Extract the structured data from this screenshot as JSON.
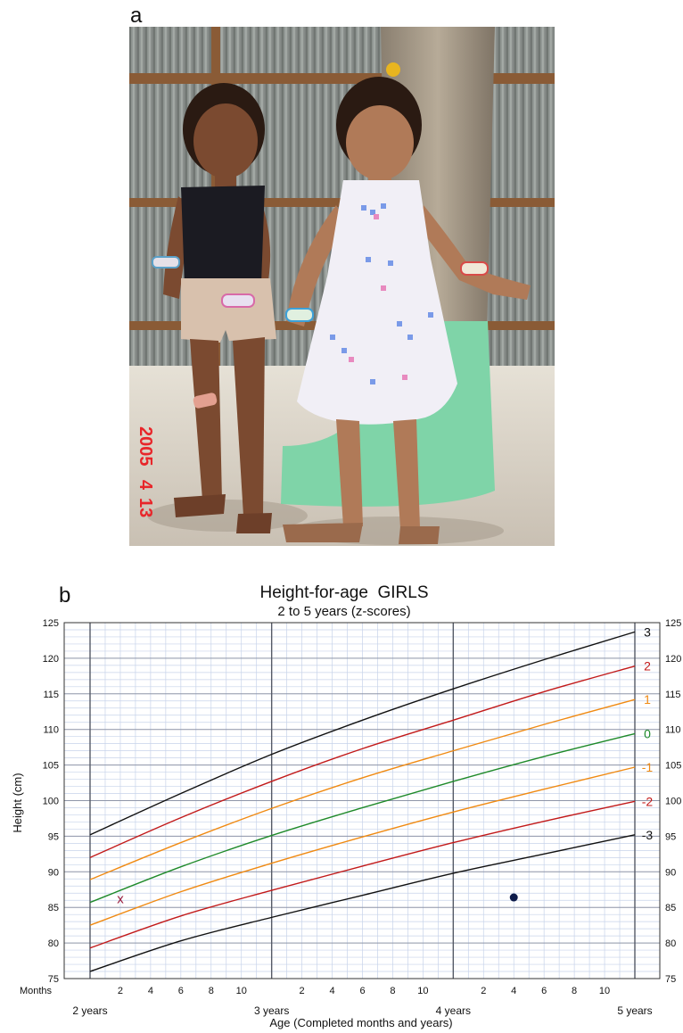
{
  "panels": {
    "a": "a",
    "b": "b"
  },
  "photo": {
    "date_stamp": [
      "2005",
      "4",
      "13"
    ],
    "colors": {
      "date_stamp": "#e8262a",
      "wall": "#8a8f8c",
      "tree_base": "#7fd4a8",
      "ground": "#d9d2c7"
    }
  },
  "chart_data": {
    "type": "line",
    "title": "Height-for-age  GIRLS",
    "subtitle": "2 to 5 years (z-scores)",
    "xlabel": "Age (Completed months and years)",
    "ylabel": "Height (cm)",
    "x_row_label": "Months",
    "xlim": [
      24,
      60
    ],
    "ylim": [
      75,
      125
    ],
    "y_ticks": [
      75,
      80,
      85,
      90,
      95,
      100,
      105,
      110,
      115,
      120,
      125
    ],
    "y_ticks_right": [
      "75",
      "80",
      "85",
      "90",
      "95",
      "100",
      "105",
      "110",
      "115",
      "120",
      "125"
    ],
    "month_ticks": [
      {
        "x": 26,
        "label": "2"
      },
      {
        "x": 28,
        "label": "4"
      },
      {
        "x": 30,
        "label": "6"
      },
      {
        "x": 32,
        "label": "8"
      },
      {
        "x": 34,
        "label": "10"
      },
      {
        "x": 38,
        "label": "2"
      },
      {
        "x": 40,
        "label": "4"
      },
      {
        "x": 42,
        "label": "6"
      },
      {
        "x": 44,
        "label": "8"
      },
      {
        "x": 46,
        "label": "10"
      },
      {
        "x": 50,
        "label": "2"
      },
      {
        "x": 52,
        "label": "4"
      },
      {
        "x": 54,
        "label": "6"
      },
      {
        "x": 56,
        "label": "8"
      },
      {
        "x": 58,
        "label": "10"
      }
    ],
    "year_labels": [
      {
        "x": 24,
        "label": "2 years"
      },
      {
        "x": 36,
        "label": "3 years"
      },
      {
        "x": 48,
        "label": "4 years"
      },
      {
        "x": 60,
        "label": "5 years"
      }
    ],
    "grid": true,
    "series": [
      {
        "name": "3",
        "color": "#111111",
        "x": [
          24,
          30,
          36,
          42,
          48,
          54,
          60
        ],
        "values": [
          95.2,
          101.0,
          106.5,
          111.3,
          115.7,
          119.8,
          123.7
        ]
      },
      {
        "name": "2",
        "color": "#c21a1a",
        "x": [
          24,
          30,
          36,
          42,
          48,
          54,
          60
        ],
        "values": [
          92.0,
          97.6,
          102.7,
          107.3,
          111.3,
          115.3,
          118.9
        ]
      },
      {
        "name": "1",
        "color": "#f08a12",
        "x": [
          24,
          30,
          36,
          42,
          48,
          54,
          60
        ],
        "values": [
          88.9,
          94.1,
          98.9,
          103.2,
          107.0,
          110.7,
          114.2
        ]
      },
      {
        "name": "0",
        "color": "#1f8a2a",
        "x": [
          24,
          30,
          36,
          42,
          48,
          54,
          60
        ],
        "values": [
          85.7,
          90.7,
          95.1,
          99.0,
          102.7,
          106.2,
          109.4
        ]
      },
      {
        "name": "-1",
        "color": "#f08a12",
        "x": [
          24,
          30,
          36,
          42,
          48,
          54,
          60
        ],
        "values": [
          82.5,
          87.2,
          91.2,
          94.9,
          98.4,
          101.6,
          104.7
        ]
      },
      {
        "name": "-2",
        "color": "#c21a1a",
        "x": [
          24,
          30,
          36,
          42,
          48,
          54,
          60
        ],
        "values": [
          79.3,
          83.8,
          87.4,
          90.8,
          94.1,
          97.1,
          99.9
        ]
      },
      {
        "name": "-3",
        "color": "#111111",
        "x": [
          24,
          30,
          36,
          42,
          48,
          54,
          60
        ],
        "values": [
          76.0,
          80.3,
          83.6,
          86.7,
          89.8,
          92.5,
          95.2
        ]
      }
    ],
    "points": [
      {
        "marker": "x",
        "label": "x",
        "x": 26,
        "y": 86.2,
        "color": "#9a1a3a"
      },
      {
        "marker": "dot",
        "x": 52,
        "y": 86.4,
        "color": "#0d1b4a"
      }
    ]
  }
}
